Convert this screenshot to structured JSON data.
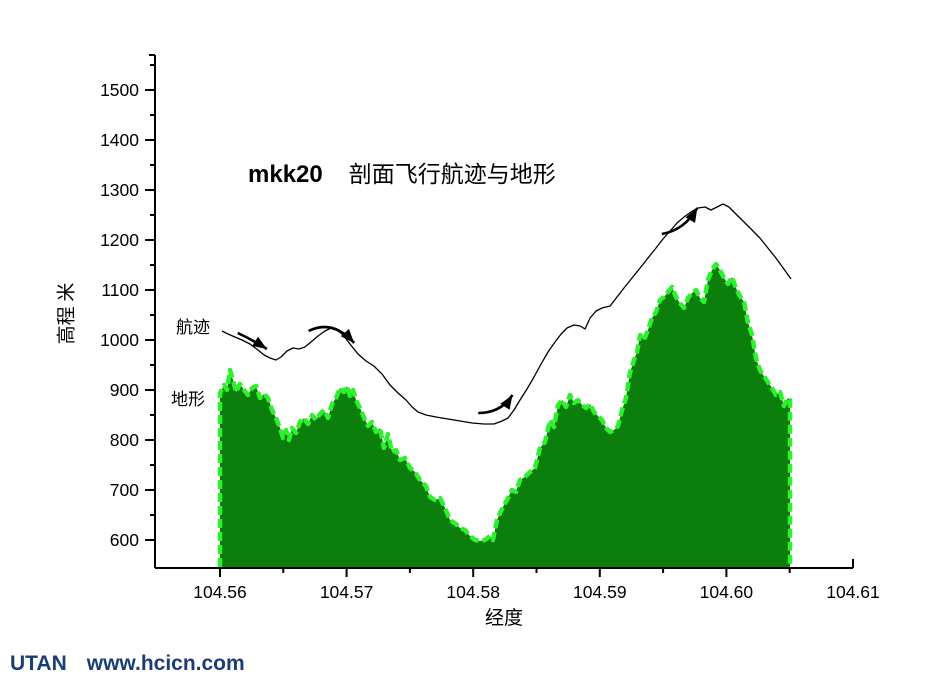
{
  "title": {
    "model": "mkk20",
    "text": "剖面飞行航迹与地形"
  },
  "labels": {
    "flight_path": "航迹",
    "terrain": "地形"
  },
  "axes": {
    "x": {
      "label": "经度",
      "tick_labels": [
        "104.56",
        "104.57",
        "104.58",
        "104.59",
        "104.60",
        "104.61"
      ],
      "tick_values": [
        104.56,
        104.57,
        104.58,
        104.59,
        104.6,
        104.61
      ],
      "minor_tick_values": [
        104.565,
        104.575,
        104.585,
        104.595,
        104.605
      ]
    },
    "y": {
      "label": "高程 米",
      "tick_labels": [
        "600",
        "700",
        "800",
        "900",
        "1000",
        "1100",
        "1200",
        "1300",
        "1400",
        "1500"
      ],
      "tick_values": [
        600,
        700,
        800,
        900,
        1000,
        1100,
        1200,
        1300,
        1400,
        1500
      ],
      "minor_tick_values": [
        650,
        750,
        850,
        950,
        1050,
        1150,
        1250,
        1350,
        1450,
        1550
      ]
    }
  },
  "watermark": {
    "brand": "UTAN",
    "site": "www.hcicn.com"
  },
  "colors": {
    "terrain_fill": "#0c7e0c",
    "terrain_edge": "#2cf12c",
    "flight_line": "#000000",
    "axis": "#000000",
    "watermark": "#1b3d76"
  },
  "chart_data": {
    "type": "area",
    "title": "mkk20 剖面飞行航迹与地形",
    "xlabel": "经度",
    "ylabel": "高程 米",
    "xlim": [
      104.5549,
      104.61
    ],
    "ylim": [
      544,
      1570
    ],
    "grid": false,
    "legend_position": "none",
    "series": [
      {
        "name": "地形",
        "type": "area",
        "points": [
          [
            104.56,
            894
          ],
          [
            104.56032,
            910
          ],
          [
            104.56055,
            900
          ],
          [
            104.56079,
            940
          ],
          [
            104.56103,
            920
          ],
          [
            104.56126,
            896
          ],
          [
            104.56158,
            912
          ],
          [
            104.5619,
            900
          ],
          [
            104.56221,
            890
          ],
          [
            104.56253,
            904
          ],
          [
            104.56284,
            908
          ],
          [
            104.56316,
            884
          ],
          [
            104.56348,
            892
          ],
          [
            104.56379,
            884
          ],
          [
            104.56411,
            860
          ],
          [
            104.56442,
            844
          ],
          [
            104.56474,
            824
          ],
          [
            104.56498,
            804
          ],
          [
            104.56521,
            820
          ],
          [
            104.56545,
            800
          ],
          [
            104.56569,
            824
          ],
          [
            104.566,
            814
          ],
          [
            104.56632,
            836
          ],
          [
            104.56664,
            844
          ],
          [
            104.56695,
            832
          ],
          [
            104.56727,
            850
          ],
          [
            104.56758,
            840
          ],
          [
            104.5679,
            852
          ],
          [
            104.56822,
            860
          ],
          [
            104.56853,
            844
          ],
          [
            104.56885,
            872
          ],
          [
            104.56916,
            884
          ],
          [
            104.56948,
            904
          ],
          [
            104.56979,
            896
          ],
          [
            104.57003,
            908
          ],
          [
            104.57027,
            888
          ],
          [
            104.57051,
            900
          ],
          [
            104.57074,
            880
          ],
          [
            104.57106,
            864
          ],
          [
            104.57138,
            844
          ],
          [
            104.57169,
            828
          ],
          [
            104.57201,
            836
          ],
          [
            104.57232,
            816
          ],
          [
            104.57264,
            824
          ],
          [
            104.57295,
            784
          ],
          [
            104.57327,
            812
          ],
          [
            104.57359,
            776
          ],
          [
            104.5739,
            780
          ],
          [
            104.57422,
            760
          ],
          [
            104.57461,
            764
          ],
          [
            104.57501,
            744
          ],
          [
            104.5754,
            736
          ],
          [
            104.5758,
            720
          ],
          [
            104.57627,
            708
          ],
          [
            104.57659,
            686
          ],
          [
            104.57698,
            680
          ],
          [
            104.57738,
            684
          ],
          [
            104.57777,
            664
          ],
          [
            104.57817,
            640
          ],
          [
            104.57864,
            632
          ],
          [
            104.57896,
            624
          ],
          [
            104.57935,
            620
          ],
          [
            104.57975,
            608
          ],
          [
            104.58014,
            600
          ],
          [
            104.58054,
            598
          ],
          [
            104.58093,
            600
          ],
          [
            104.58133,
            608
          ],
          [
            104.58156,
            600
          ],
          [
            104.58188,
            640
          ],
          [
            104.58212,
            654
          ],
          [
            104.58243,
            670
          ],
          [
            104.58275,
            684
          ],
          [
            104.58306,
            700
          ],
          [
            104.58338,
            696
          ],
          [
            104.5837,
            720
          ],
          [
            104.58409,
            726
          ],
          [
            104.58449,
            736
          ],
          [
            104.58488,
            744
          ],
          [
            104.58528,
            784
          ],
          [
            104.58567,
            796
          ],
          [
            104.58607,
            840
          ],
          [
            104.58638,
            826
          ],
          [
            104.5867,
            870
          ],
          [
            104.58702,
            880
          ],
          [
            104.58733,
            866
          ],
          [
            104.58765,
            890
          ],
          [
            104.58796,
            874
          ],
          [
            104.58828,
            880
          ],
          [
            104.5886,
            870
          ],
          [
            104.58891,
            864
          ],
          [
            104.58923,
            872
          ],
          [
            104.58954,
            856
          ],
          [
            104.58986,
            848
          ],
          [
            104.59017,
            840
          ],
          [
            104.59049,
            824
          ],
          [
            104.59081,
            816
          ],
          [
            104.59112,
            820
          ],
          [
            104.59144,
            828
          ],
          [
            104.59175,
            860
          ],
          [
            104.59207,
            884
          ],
          [
            104.59238,
            934
          ],
          [
            104.5927,
            960
          ],
          [
            104.59294,
            976
          ],
          [
            104.59318,
            1010
          ],
          [
            104.59349,
            1000
          ],
          [
            104.59381,
            1020
          ],
          [
            104.59412,
            1044
          ],
          [
            104.59444,
            1056
          ],
          [
            104.59476,
            1080
          ],
          [
            104.59507,
            1086
          ],
          [
            104.59539,
            1096
          ],
          [
            104.5957,
            1106
          ],
          [
            104.59602,
            1086
          ],
          [
            104.59633,
            1074
          ],
          [
            104.59665,
            1064
          ],
          [
            104.59697,
            1084
          ],
          [
            104.59728,
            1094
          ],
          [
            104.5976,
            1100
          ],
          [
            104.59791,
            1084
          ],
          [
            104.59823,
            1076
          ],
          [
            104.59854,
            1120
          ],
          [
            104.59886,
            1140
          ],
          [
            104.59918,
            1152
          ],
          [
            104.59949,
            1140
          ],
          [
            104.59981,
            1124
          ],
          [
            104.60012,
            1112
          ],
          [
            104.60044,
            1126
          ],
          [
            104.60075,
            1104
          ],
          [
            104.60107,
            1088
          ],
          [
            104.60139,
            1076
          ],
          [
            104.6017,
            1036
          ],
          [
            104.60202,
            1010
          ],
          [
            104.60233,
            964
          ],
          [
            104.60265,
            940
          ],
          [
            104.60296,
            928
          ],
          [
            104.60328,
            916
          ],
          [
            104.6036,
            904
          ],
          [
            104.60391,
            890
          ],
          [
            104.60423,
            896
          ],
          [
            104.60454,
            868
          ],
          [
            104.60486,
            884
          ],
          [
            104.60502,
            880
          ]
        ]
      },
      {
        "name": "航迹",
        "type": "line",
        "points": [
          [
            104.56016,
            1018
          ],
          [
            104.56063,
            1012
          ],
          [
            104.56118,
            1006
          ],
          [
            104.56174,
            1000
          ],
          [
            104.56237,
            992
          ],
          [
            104.563,
            980
          ],
          [
            104.56348,
            970
          ],
          [
            104.56395,
            964
          ],
          [
            104.56442,
            960
          ],
          [
            104.56482,
            966
          ],
          [
            104.56529,
            978
          ],
          [
            104.56577,
            984
          ],
          [
            104.56624,
            982
          ],
          [
            104.56671,
            986
          ],
          [
            104.56719,
            996
          ],
          [
            104.56774,
            1008
          ],
          [
            104.56829,
            1018
          ],
          [
            104.56877,
            1024
          ],
          [
            104.56924,
            1020
          ],
          [
            104.56972,
            1010
          ],
          [
            104.57027,
            992
          ],
          [
            104.5709,
            972
          ],
          [
            104.57153,
            958
          ],
          [
            104.57216,
            948
          ],
          [
            104.5728,
            932
          ],
          [
            104.57343,
            910
          ],
          [
            104.57406,
            894
          ],
          [
            104.57469,
            880
          ],
          [
            104.57517,
            866
          ],
          [
            104.57564,
            856
          ],
          [
            104.57627,
            850
          ],
          [
            104.57706,
            846
          ],
          [
            104.57801,
            842
          ],
          [
            104.57896,
            838
          ],
          [
            104.57991,
            834
          ],
          [
            104.58085,
            832
          ],
          [
            104.58164,
            832
          ],
          [
            104.58228,
            838
          ],
          [
            104.58275,
            844
          ],
          [
            104.58322,
            860
          ],
          [
            104.5837,
            880
          ],
          [
            104.58425,
            902
          ],
          [
            104.5848,
            926
          ],
          [
            104.58536,
            952
          ],
          [
            104.58591,
            976
          ],
          [
            104.58646,
            996
          ],
          [
            104.58694,
            1012
          ],
          [
            104.58741,
            1024
          ],
          [
            104.58796,
            1030
          ],
          [
            104.58844,
            1028
          ],
          [
            104.58883,
            1022
          ],
          [
            104.58923,
            1044
          ],
          [
            104.5897,
            1058
          ],
          [
            104.59017,
            1064
          ],
          [
            104.59081,
            1068
          ],
          [
            104.59136,
            1086
          ],
          [
            104.59191,
            1104
          ],
          [
            104.59254,
            1124
          ],
          [
            104.59318,
            1144
          ],
          [
            104.59381,
            1164
          ],
          [
            104.59444,
            1184
          ],
          [
            104.59499,
            1202
          ],
          [
            104.59555,
            1218
          ],
          [
            104.5961,
            1234
          ],
          [
            104.59665,
            1246
          ],
          [
            104.5972,
            1256
          ],
          [
            104.59776,
            1264
          ],
          [
            104.59831,
            1266
          ],
          [
            104.59878,
            1260
          ],
          [
            104.59926,
            1266
          ],
          [
            104.59973,
            1272
          ],
          [
            104.6002,
            1266
          ],
          [
            104.60075,
            1252
          ],
          [
            104.60139,
            1236
          ],
          [
            104.60202,
            1220
          ],
          [
            104.60265,
            1204
          ],
          [
            104.60328,
            1184
          ],
          [
            104.60391,
            1164
          ],
          [
            104.60454,
            1142
          ],
          [
            104.6051,
            1122
          ]
        ]
      }
    ],
    "arrows": [
      {
        "start": [
          104.5614,
          1014
        ],
        "ctrl": [
          104.5626,
          1000
        ],
        "end": [
          104.5637,
          982
        ]
      },
      {
        "start": [
          104.567,
          1018
        ],
        "ctrl": [
          104.5689,
          1042
        ],
        "end": [
          104.5706,
          994
        ]
      },
      {
        "start": [
          104.5804,
          854
        ],
        "ctrl": [
          104.5822,
          854
        ],
        "end": [
          104.5831,
          890
        ]
      },
      {
        "start": [
          104.5949,
          1212
        ],
        "ctrl": [
          104.5967,
          1220
        ],
        "end": [
          104.5977,
          1264
        ]
      }
    ]
  }
}
